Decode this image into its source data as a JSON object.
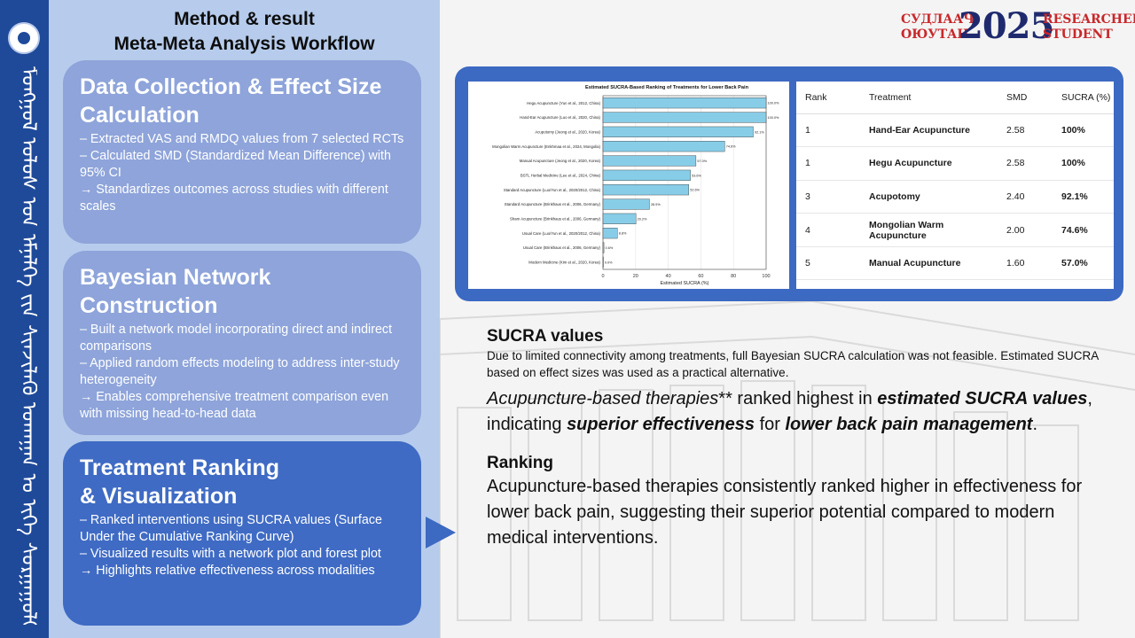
{
  "left": {
    "title_line1": "Method & result",
    "title_line2": "Meta-Meta Analysis Workflow",
    "vertical_script": "ᠮᠣᠩᠭᠣᠯ ᠤᠯᠤᠰ ᠤᠨ ᠡᠮᠨᠡᠯᠭᠡ ᠵᠢᠨ ᠰᠢᠨᠵᠢᠯᠡᠬᠦ ᠤᠬᠠᠭᠠᠨ ᠤ ᠢᠬᠡ ᠰᠤᠷᠭᠠᠭᠤᠯᠢ",
    "cards": [
      {
        "title_line1": "Data Collection & Effect Size",
        "title_line2": "Calculation",
        "lines": [
          "– Extracted VAS and RMDQ values from 7 selected RCTs",
          "– Calculated SMD (Standardized Mean Difference) with 95% CI",
          "→ Standardizes outcomes across studies with different scales"
        ]
      },
      {
        "title_line1": "Bayesian Network",
        "title_line2": "Construction",
        "lines": [
          "– Built a network model incorporating direct and indirect comparisons",
          "– Applied random effects modeling to address inter-study heterogeneity",
          "→ Enables comprehensive treatment comparison even with missing head-to-head data"
        ]
      },
      {
        "title_line1": "Treatment Ranking",
        "title_line2": "& Visualization",
        "lines": [
          "– Ranked interventions using SUCRA values (Surface Under the Cumulative Ranking Curve)",
          "– Visualized results with a network plot and forest plot",
          "→ Highlights relative effectiveness across modalities"
        ]
      }
    ]
  },
  "header": {
    "left_line1": "СУДЛААЧ",
    "left_line2": "ОЮУТАН",
    "year": "2025",
    "right_line1": "RESEARCHER",
    "right_line2": "STUDENT"
  },
  "chart_data": {
    "type": "bar",
    "orientation": "horizontal",
    "title": "Estimated SUCRA-Based Ranking of Treatments for Lower Back Pain",
    "xlabel": "Estimated SUCRA (%)",
    "ylabel": "",
    "xlim": [
      0,
      100
    ],
    "xticks": [
      "0",
      "20",
      "40",
      "60",
      "80",
      "100"
    ],
    "categories": [
      "Hegu Acupuncture (Yun et al., 2012, China)",
      "Hand-Ear Acupuncture (Luo et al., 2020, China)",
      "Acupotomy (Jeong et al., 2020, Korea)",
      "Mongolian Warm Acupuncture (Enkhmaa et al., 2024, Mongolia)",
      "Manual Acupuncture (Jeong et al., 2020, Korea)",
      "BSTL Herbal Medicine (Lee et al., 2024, China)",
      "Standard Acupuncture (Luo/Yun et al., 2020/2012, China)",
      "Standard Acupuncture (Brinkhaus et al., 2006, Germany)",
      "Sham Acupuncture (Brinkhaus et al., 2006, Germany)",
      "Usual Care (Luo/Yun et al., 2020/2012, China)",
      "Usual Care (Brinkhaus et al., 2006, Germany)",
      "Modern Medicine (Kim et al., 2020, Korea)"
    ],
    "values": [
      100,
      100,
      92.1,
      74.6,
      57.0,
      53.6,
      52.6,
      28.5,
      20.2,
      8.8,
      0.6,
      0.0
    ],
    "value_labels": [
      "100.0%",
      "100.0%",
      "92.1%",
      "74.6%",
      "57.0%",
      "53.6%",
      "52.6%",
      "28.5%",
      "20.2%",
      "8.8%",
      "0.6%",
      "0.0%"
    ],
    "bar_color": "#87cde8",
    "grid": true
  },
  "table": {
    "headers": [
      "Rank",
      "Treatment",
      "SMD",
      "SUCRA (%)"
    ],
    "rows": [
      [
        "1",
        "Hand-Ear Acupuncture",
        "2.58",
        "100%"
      ],
      [
        "1",
        "Hegu Acupuncture",
        "2.58",
        "100%"
      ],
      [
        "3",
        "Acupotomy",
        "2.40",
        "92.1%"
      ],
      [
        "4",
        "Mongolian Warm Acupuncture",
        "2.00",
        "74.6%"
      ],
      [
        "5",
        "Manual Acupuncture",
        "1.60",
        "57.0%"
      ]
    ]
  },
  "text": {
    "sucra_heading": "SUCRA values",
    "sucra_note": "Due to limited connectivity among treatments, full Bayesian SUCRA calculation was not feasible. Estimated SUCRA based on effect sizes was used as a practical alternative.",
    "p1_a": "Acupuncture-based therapies",
    "p1_b": "** ranked highest in ",
    "p1_c": "estimated SUCRA values",
    "p1_d": ", indicating ",
    "p1_e": "superior effectiveness",
    "p1_f": " for ",
    "p1_g": "lower back pain management",
    "p1_h": ".",
    "ranking_heading": "Ranking",
    "ranking_text": "Acupuncture-based therapies consistently ranked higher in effectiveness for lower back pain, suggesting their superior potential compared to modern medical interventions."
  },
  "colors": {
    "strip": "#1f4a99",
    "panel": "#b7ccec",
    "card_light": "#8ea4da",
    "card_dark": "#3f6bc4",
    "chart_frame": "#3c69c2"
  }
}
